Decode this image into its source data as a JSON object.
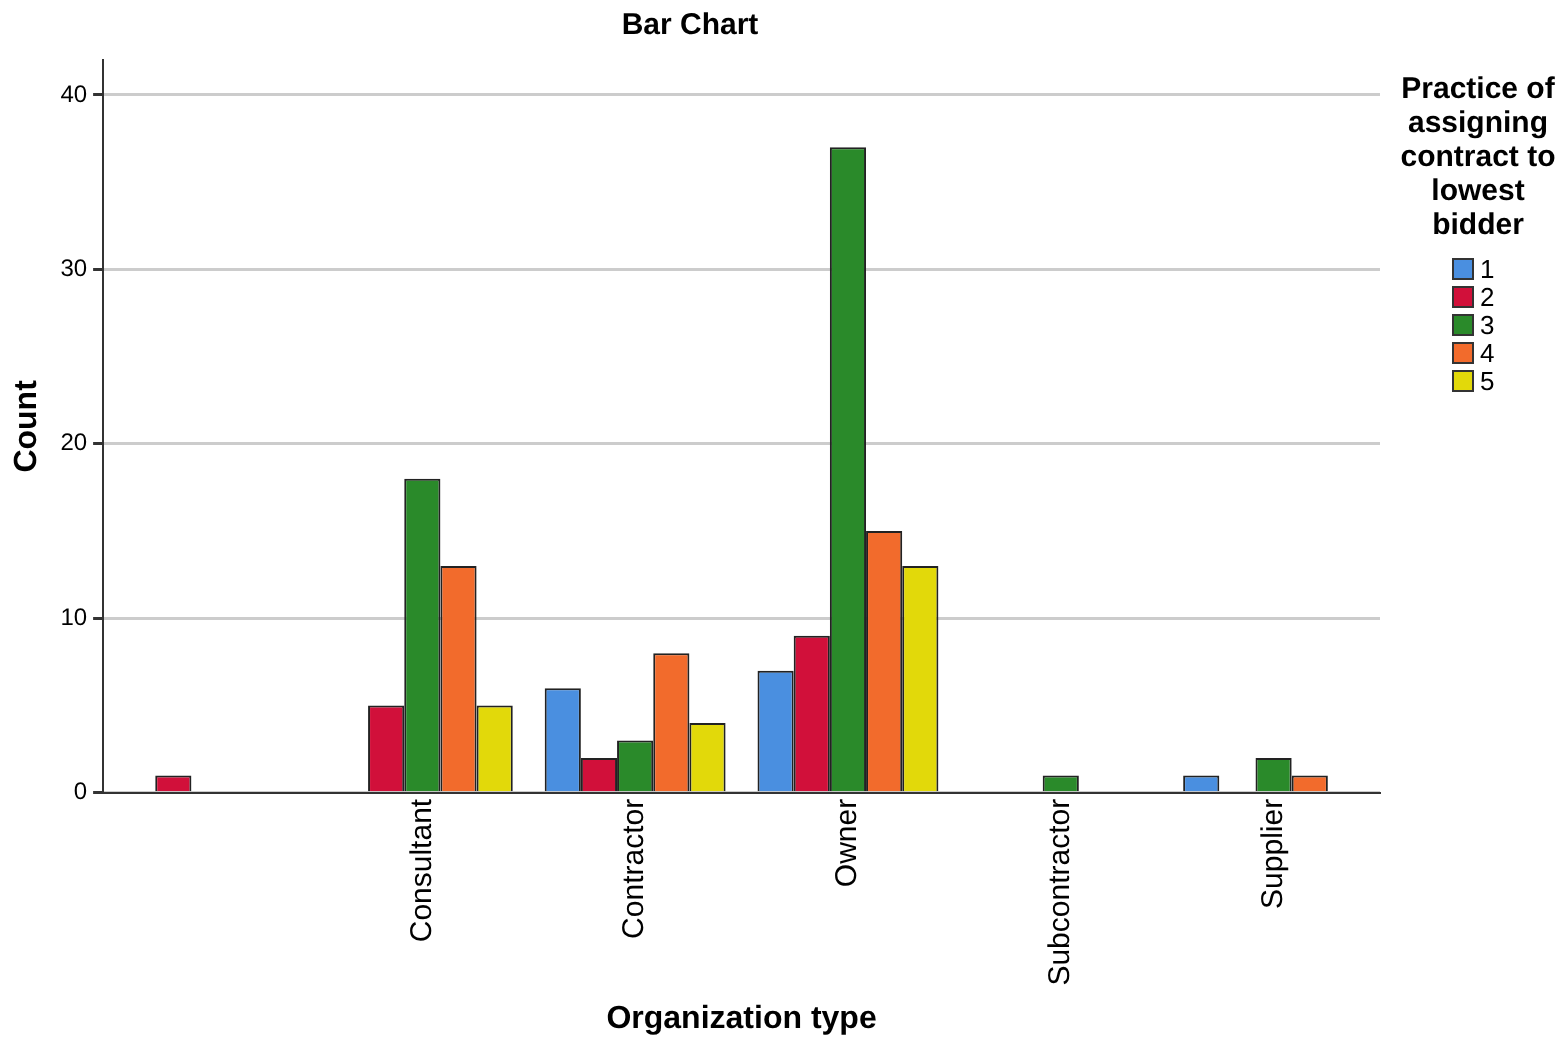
{
  "chart_data": {
    "type": "bar",
    "title": "Bar Chart",
    "xlabel": "Organization type",
    "ylabel": "Count",
    "legend_title": "Practice of assigning contract to lowest bidder",
    "categories": [
      null,
      "Consultant",
      "Contractor",
      "Owner",
      "Subcontractor",
      "Supplier"
    ],
    "series": [
      {
        "name": "1",
        "color": "#4a8fe0",
        "values": [
          null,
          null,
          6,
          7,
          null,
          1
        ]
      },
      {
        "name": "2",
        "color": "#d1103a",
        "values": [
          1,
          5,
          2,
          9,
          null,
          null
        ]
      },
      {
        "name": "3",
        "color": "#2a8a2a",
        "values": [
          null,
          18,
          3,
          37,
          1,
          2
        ]
      },
      {
        "name": "4",
        "color": "#f26b2c",
        "values": [
          null,
          13,
          8,
          15,
          null,
          1
        ]
      },
      {
        "name": "5",
        "color": "#e2d90a",
        "values": [
          null,
          5,
          4,
          13,
          null,
          null
        ]
      }
    ],
    "ylim": [
      0,
      42
    ],
    "yticks": [
      0,
      10,
      20,
      30,
      40
    ],
    "grid": "y",
    "legend": "right"
  }
}
